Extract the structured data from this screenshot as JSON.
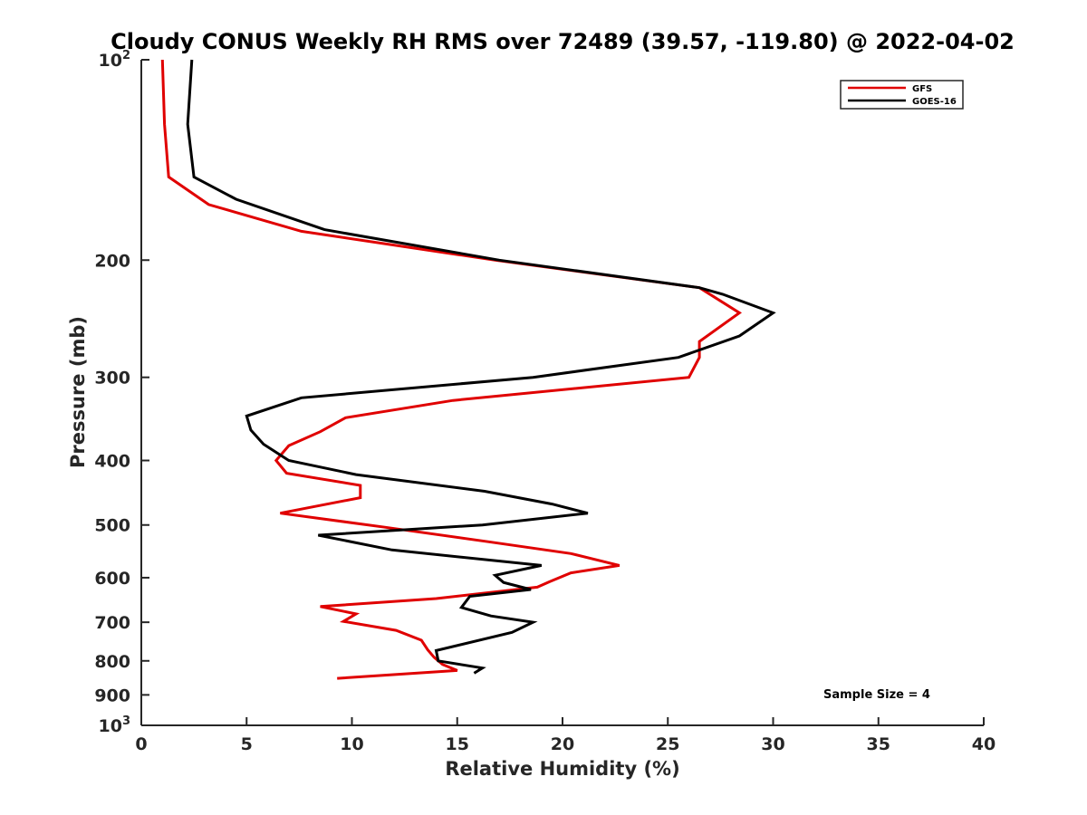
{
  "chart_data": {
    "type": "line",
    "title": "Cloudy CONUS Weekly RH RMS over 72489 (39.57, -119.80) @ 2022-04-02",
    "xlabel": "Relative Humidity (%)",
    "ylabel": "Pressure (mb)",
    "xlim": [
      0,
      40
    ],
    "ylim": [
      100,
      1000
    ],
    "yscale": "log",
    "y_reversed": true,
    "x_ticks": [
      0,
      5,
      10,
      15,
      20,
      25,
      30,
      35,
      40
    ],
    "x_tick_labels": [
      "0",
      "5",
      "10",
      "15",
      "20",
      "25",
      "30",
      "35",
      "40"
    ],
    "y_ticks": [
      100,
      200,
      300,
      400,
      500,
      600,
      700,
      800,
      900,
      1000
    ],
    "y_tick_labels": [
      {
        "base": "10",
        "exp": "2"
      },
      {
        "base": "200",
        "exp": ""
      },
      {
        "base": "300",
        "exp": ""
      },
      {
        "base": "400",
        "exp": ""
      },
      {
        "base": "500",
        "exp": ""
      },
      {
        "base": "600",
        "exp": ""
      },
      {
        "base": "700",
        "exp": ""
      },
      {
        "base": "800",
        "exp": ""
      },
      {
        "base": "900",
        "exp": ""
      },
      {
        "base": "10",
        "exp": "3"
      }
    ],
    "grid": false,
    "legend_position": "top-right",
    "annotation": "Sample Size = 4",
    "series": [
      {
        "name": "GFS",
        "color": "#e00000",
        "points": [
          {
            "p": 100,
            "x": 1.0
          },
          {
            "p": 125,
            "x": 1.1
          },
          {
            "p": 150,
            "x": 1.3
          },
          {
            "p": 165,
            "x": 3.2
          },
          {
            "p": 181,
            "x": 7.6
          },
          {
            "p": 200,
            "x": 16.8
          },
          {
            "p": 220,
            "x": 26.5
          },
          {
            "p": 240,
            "x": 28.4
          },
          {
            "p": 265,
            "x": 26.5
          },
          {
            "p": 280,
            "x": 26.5
          },
          {
            "p": 300,
            "x": 26.0
          },
          {
            "p": 325,
            "x": 14.8
          },
          {
            "p": 345,
            "x": 9.7
          },
          {
            "p": 362,
            "x": 8.5
          },
          {
            "p": 380,
            "x": 7.0
          },
          {
            "p": 400,
            "x": 6.4
          },
          {
            "p": 418,
            "x": 6.9
          },
          {
            "p": 436,
            "x": 10.4
          },
          {
            "p": 455,
            "x": 10.4
          },
          {
            "p": 480,
            "x": 6.6
          },
          {
            "p": 504,
            "x": 11.6
          },
          {
            "p": 530,
            "x": 16.5
          },
          {
            "p": 552,
            "x": 20.4
          },
          {
            "p": 575,
            "x": 22.7
          },
          {
            "p": 590,
            "x": 20.4
          },
          {
            "p": 608,
            "x": 19.4
          },
          {
            "p": 620,
            "x": 18.8
          },
          {
            "p": 645,
            "x": 14.0
          },
          {
            "p": 663,
            "x": 8.5
          },
          {
            "p": 680,
            "x": 10.2
          },
          {
            "p": 698,
            "x": 9.6
          },
          {
            "p": 720,
            "x": 12.1
          },
          {
            "p": 745,
            "x": 13.3
          },
          {
            "p": 770,
            "x": 13.6
          },
          {
            "p": 790,
            "x": 13.9
          },
          {
            "p": 810,
            "x": 14.3
          },
          {
            "p": 827,
            "x": 15.0
          },
          {
            "p": 850,
            "x": 9.3
          }
        ]
      },
      {
        "name": "GOES-16",
        "color": "#000000",
        "points": [
          {
            "p": 100,
            "x": 2.4
          },
          {
            "p": 125,
            "x": 2.2
          },
          {
            "p": 150,
            "x": 2.5
          },
          {
            "p": 162,
            "x": 4.5
          },
          {
            "p": 180,
            "x": 8.7
          },
          {
            "p": 200,
            "x": 17.0
          },
          {
            "p": 220,
            "x": 26.5
          },
          {
            "p": 225,
            "x": 27.6
          },
          {
            "p": 240,
            "x": 30.0
          },
          {
            "p": 260,
            "x": 28.4
          },
          {
            "p": 280,
            "x": 25.5
          },
          {
            "p": 300,
            "x": 18.6
          },
          {
            "p": 322,
            "x": 7.6
          },
          {
            "p": 343,
            "x": 5.0
          },
          {
            "p": 360,
            "x": 5.2
          },
          {
            "p": 378,
            "x": 5.8
          },
          {
            "p": 400,
            "x": 7.0
          },
          {
            "p": 420,
            "x": 10.2
          },
          {
            "p": 445,
            "x": 16.3
          },
          {
            "p": 465,
            "x": 19.5
          },
          {
            "p": 480,
            "x": 21.2
          },
          {
            "p": 500,
            "x": 16.2
          },
          {
            "p": 518,
            "x": 8.4
          },
          {
            "p": 545,
            "x": 11.9
          },
          {
            "p": 575,
            "x": 19.0
          },
          {
            "p": 595,
            "x": 16.8
          },
          {
            "p": 610,
            "x": 17.2
          },
          {
            "p": 625,
            "x": 18.5
          },
          {
            "p": 640,
            "x": 15.6
          },
          {
            "p": 665,
            "x": 15.2
          },
          {
            "p": 685,
            "x": 16.6
          },
          {
            "p": 700,
            "x": 18.6
          },
          {
            "p": 725,
            "x": 17.6
          },
          {
            "p": 772,
            "x": 14.0
          },
          {
            "p": 800,
            "x": 14.1
          },
          {
            "p": 820,
            "x": 16.2
          },
          {
            "p": 835,
            "x": 15.8
          }
        ]
      }
    ]
  }
}
